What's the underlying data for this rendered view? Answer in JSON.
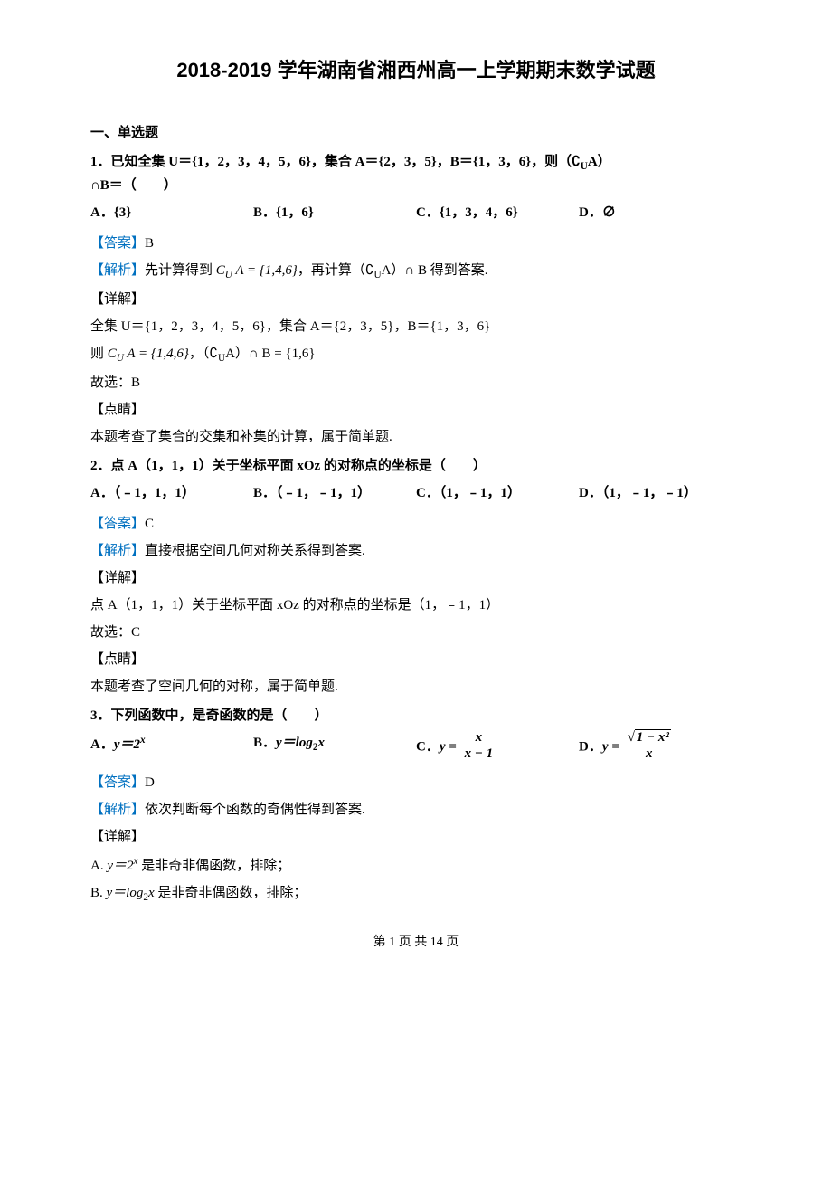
{
  "page": {
    "title": "2018-2019 学年湖南省湘西州高一上学期期末数学试题",
    "footer": "第 1 页 共 14 页"
  },
  "colors": {
    "tag_color": "#0070c0",
    "text_color": "#000000",
    "background": "#ffffff"
  },
  "typography": {
    "title_fontsize": 22,
    "body_fontsize": 15,
    "line_height": 1.6,
    "body_font": "SimSun",
    "heading_font": "SimHei"
  },
  "section_heading": "一、单选题",
  "q1": {
    "stem_a": "1．已知全集 U＝{1，2，3，4，5，6}，集合 A＝{2，3，5}，B＝{1，3，6}，则（∁",
    "stem_sub": "U",
    "stem_b": "A）",
    "stem_c": "∩B＝（　　）",
    "options": {
      "A": "A．{3}",
      "B": "B．{1，6}",
      "C": "C．{1，3，4，6}",
      "D": "D．∅"
    },
    "answer_label": "【答案】",
    "answer": "B",
    "analysis_label": "【解析】",
    "analysis_a": "先计算得到",
    "analysis_expr1": "C_U A = {1,4,6}",
    "analysis_b": "，再计算（∁",
    "analysis_sub": "U",
    "analysis_c": "A）∩ B 得到答案.",
    "detail_label": "【详解】",
    "detail1": "全集 U＝{1，2，3，4，5，6}，集合 A＝{2，3，5}，B＝{1，3，6}",
    "detail2_a": "则 ",
    "detail2_expr1": "C_U A = {1,4,6}",
    "detail2_b": "，（∁",
    "detail2_sub": "U",
    "detail2_c": "A）∩ B = {1,6}",
    "answer_line": "故选：B",
    "tip_label": "【点睛】",
    "tip": "本题考查了集合的交集和补集的计算，属于简单题."
  },
  "q2": {
    "stem": "2．点 A（1，1，1）关于坐标平面 xOz 的对称点的坐标是（　　）",
    "options": {
      "A": "A．（﹣1，1，1）",
      "B": "B．（﹣1，﹣1，1）",
      "C": "C．（1，﹣1，1）",
      "D": "D．（1，﹣1，﹣1）"
    },
    "answer_label": "【答案】",
    "answer": "C",
    "analysis_label": "【解析】",
    "analysis": "直接根据空间几何对称关系得到答案.",
    "detail_label": "【详解】",
    "detail": "点 A（1，1，1）关于坐标平面 xOz 的对称点的坐标是（1，﹣1，1）",
    "answer_line": "故选：C",
    "tip_label": "【点睛】",
    "tip": "本题考查了空间几何的对称，属于简单题."
  },
  "q3": {
    "stem": "3．下列函数中，是奇函数的是（　　）",
    "options": {
      "A_prefix": "A．",
      "A_expr": "y＝2",
      "A_sup": "x",
      "B_prefix": "B．",
      "B_expr": "y＝log",
      "B_sub": "2",
      "B_tail": "x",
      "C_prefix": "C．",
      "C_eq": "y = ",
      "C_num": "x",
      "C_den": "x − 1",
      "D_prefix": "D．",
      "D_eq": "y = ",
      "D_num_inner": "1 − x²",
      "D_den": "x"
    },
    "answer_label": "【答案】",
    "answer": "D",
    "analysis_label": "【解析】",
    "analysis": "依次判断每个函数的奇偶性得到答案.",
    "detail_label": "【详解】",
    "detailA_a": "A. ",
    "detailA_expr": "y＝2",
    "detailA_sup": "x",
    "detailA_b": " 是非奇非偶函数，排除；",
    "detailB_a": "B. ",
    "detailB_expr": "y＝log",
    "detailB_sub": "2",
    "detailB_tail": "x",
    "detailB_b": " 是非奇非偶函数，排除；"
  }
}
